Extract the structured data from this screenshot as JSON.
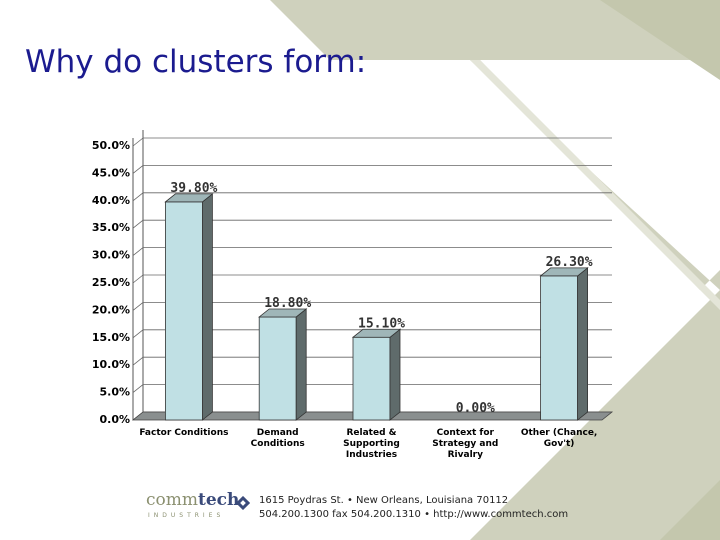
{
  "slide": {
    "title": "Why do clusters form:"
  },
  "colors": {
    "bar_face": "#c0e0e4",
    "bar_side": "#5f6b6b",
    "title": "#1b1b8f",
    "background_shape": "#cfd1bd"
  },
  "chart_data": {
    "type": "bar",
    "categories": [
      [
        "Factor Conditions"
      ],
      [
        "Demand",
        "Conditions"
      ],
      [
        "Related &",
        "Supporting",
        "Industries"
      ],
      [
        "Context for",
        "Strategy and",
        "Rivalry"
      ],
      [
        "Other (Chance,",
        "Gov't)"
      ]
    ],
    "values": [
      39.8,
      18.8,
      15.1,
      0.0,
      26.3
    ],
    "data_labels": [
      "39.80%",
      "18.80%",
      "15.10%",
      "0.00%",
      "26.30%"
    ],
    "yticks": [
      "0.0%",
      "5.0%",
      "10.0%",
      "15.0%",
      "20.0%",
      "25.0%",
      "30.0%",
      "35.0%",
      "40.0%",
      "45.0%",
      "50.0%"
    ],
    "ylim": [
      0,
      50
    ],
    "grid": true,
    "legend": "none"
  },
  "footer": {
    "logo_comm": "comm",
    "logo_tech": "tech",
    "logo_sub": "INDUSTRIES",
    "logo_mark": "logo-mark-icon",
    "line1": "1615 Poydras St. • New Orleans, Louisiana 70112",
    "line2": "504.200.1300  fax 504.200.1310 • http://www.commtech.com"
  }
}
